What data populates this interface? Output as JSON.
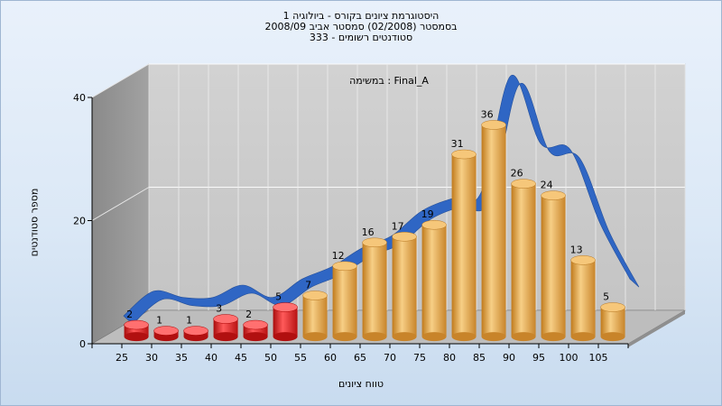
{
  "chart_data": {
    "type": "bar",
    "title_lines": [
      "היסטוגרמת ציונים בקורס - ביולוגיה 1",
      "בסמסטר  (02/2008)  סמסטר אביב 2008/09",
      "סטודנטים רשומים - 333"
    ],
    "xlabel": "טווח ציונים",
    "ylabel": "מספר סטודנטים",
    "annotation": "במשימה : Final_A",
    "categories": [
      "25",
      "30",
      "35",
      "40",
      "45",
      "50",
      "55",
      "60",
      "65",
      "70",
      "75",
      "80",
      "85",
      "90",
      "95",
      "100",
      "105"
    ],
    "values": [
      2,
      1,
      1,
      3,
      2,
      5,
      7,
      12,
      16,
      17,
      19,
      31,
      36,
      26,
      24,
      13,
      5
    ],
    "bar_colors": [
      "#e01818",
      "#e01818",
      "#e01818",
      "#e01818",
      "#e01818",
      "#e01818",
      "#e8a33d",
      "#e8a33d",
      "#e8a33d",
      "#e8a33d",
      "#e8a33d",
      "#e8a33d",
      "#e8a33d",
      "#e8a33d",
      "#e8a33d",
      "#e8a33d",
      "#e8a33d"
    ],
    "curve_values": [
      1,
      5,
      4,
      4,
      6,
      4,
      7,
      9,
      12,
      14,
      18,
      20,
      21,
      40,
      29,
      28,
      16,
      7
    ],
    "curve_color": "#2f66c4",
    "yticks": [
      0,
      20,
      40
    ],
    "ylim": [
      0,
      40
    ],
    "grid": true
  }
}
